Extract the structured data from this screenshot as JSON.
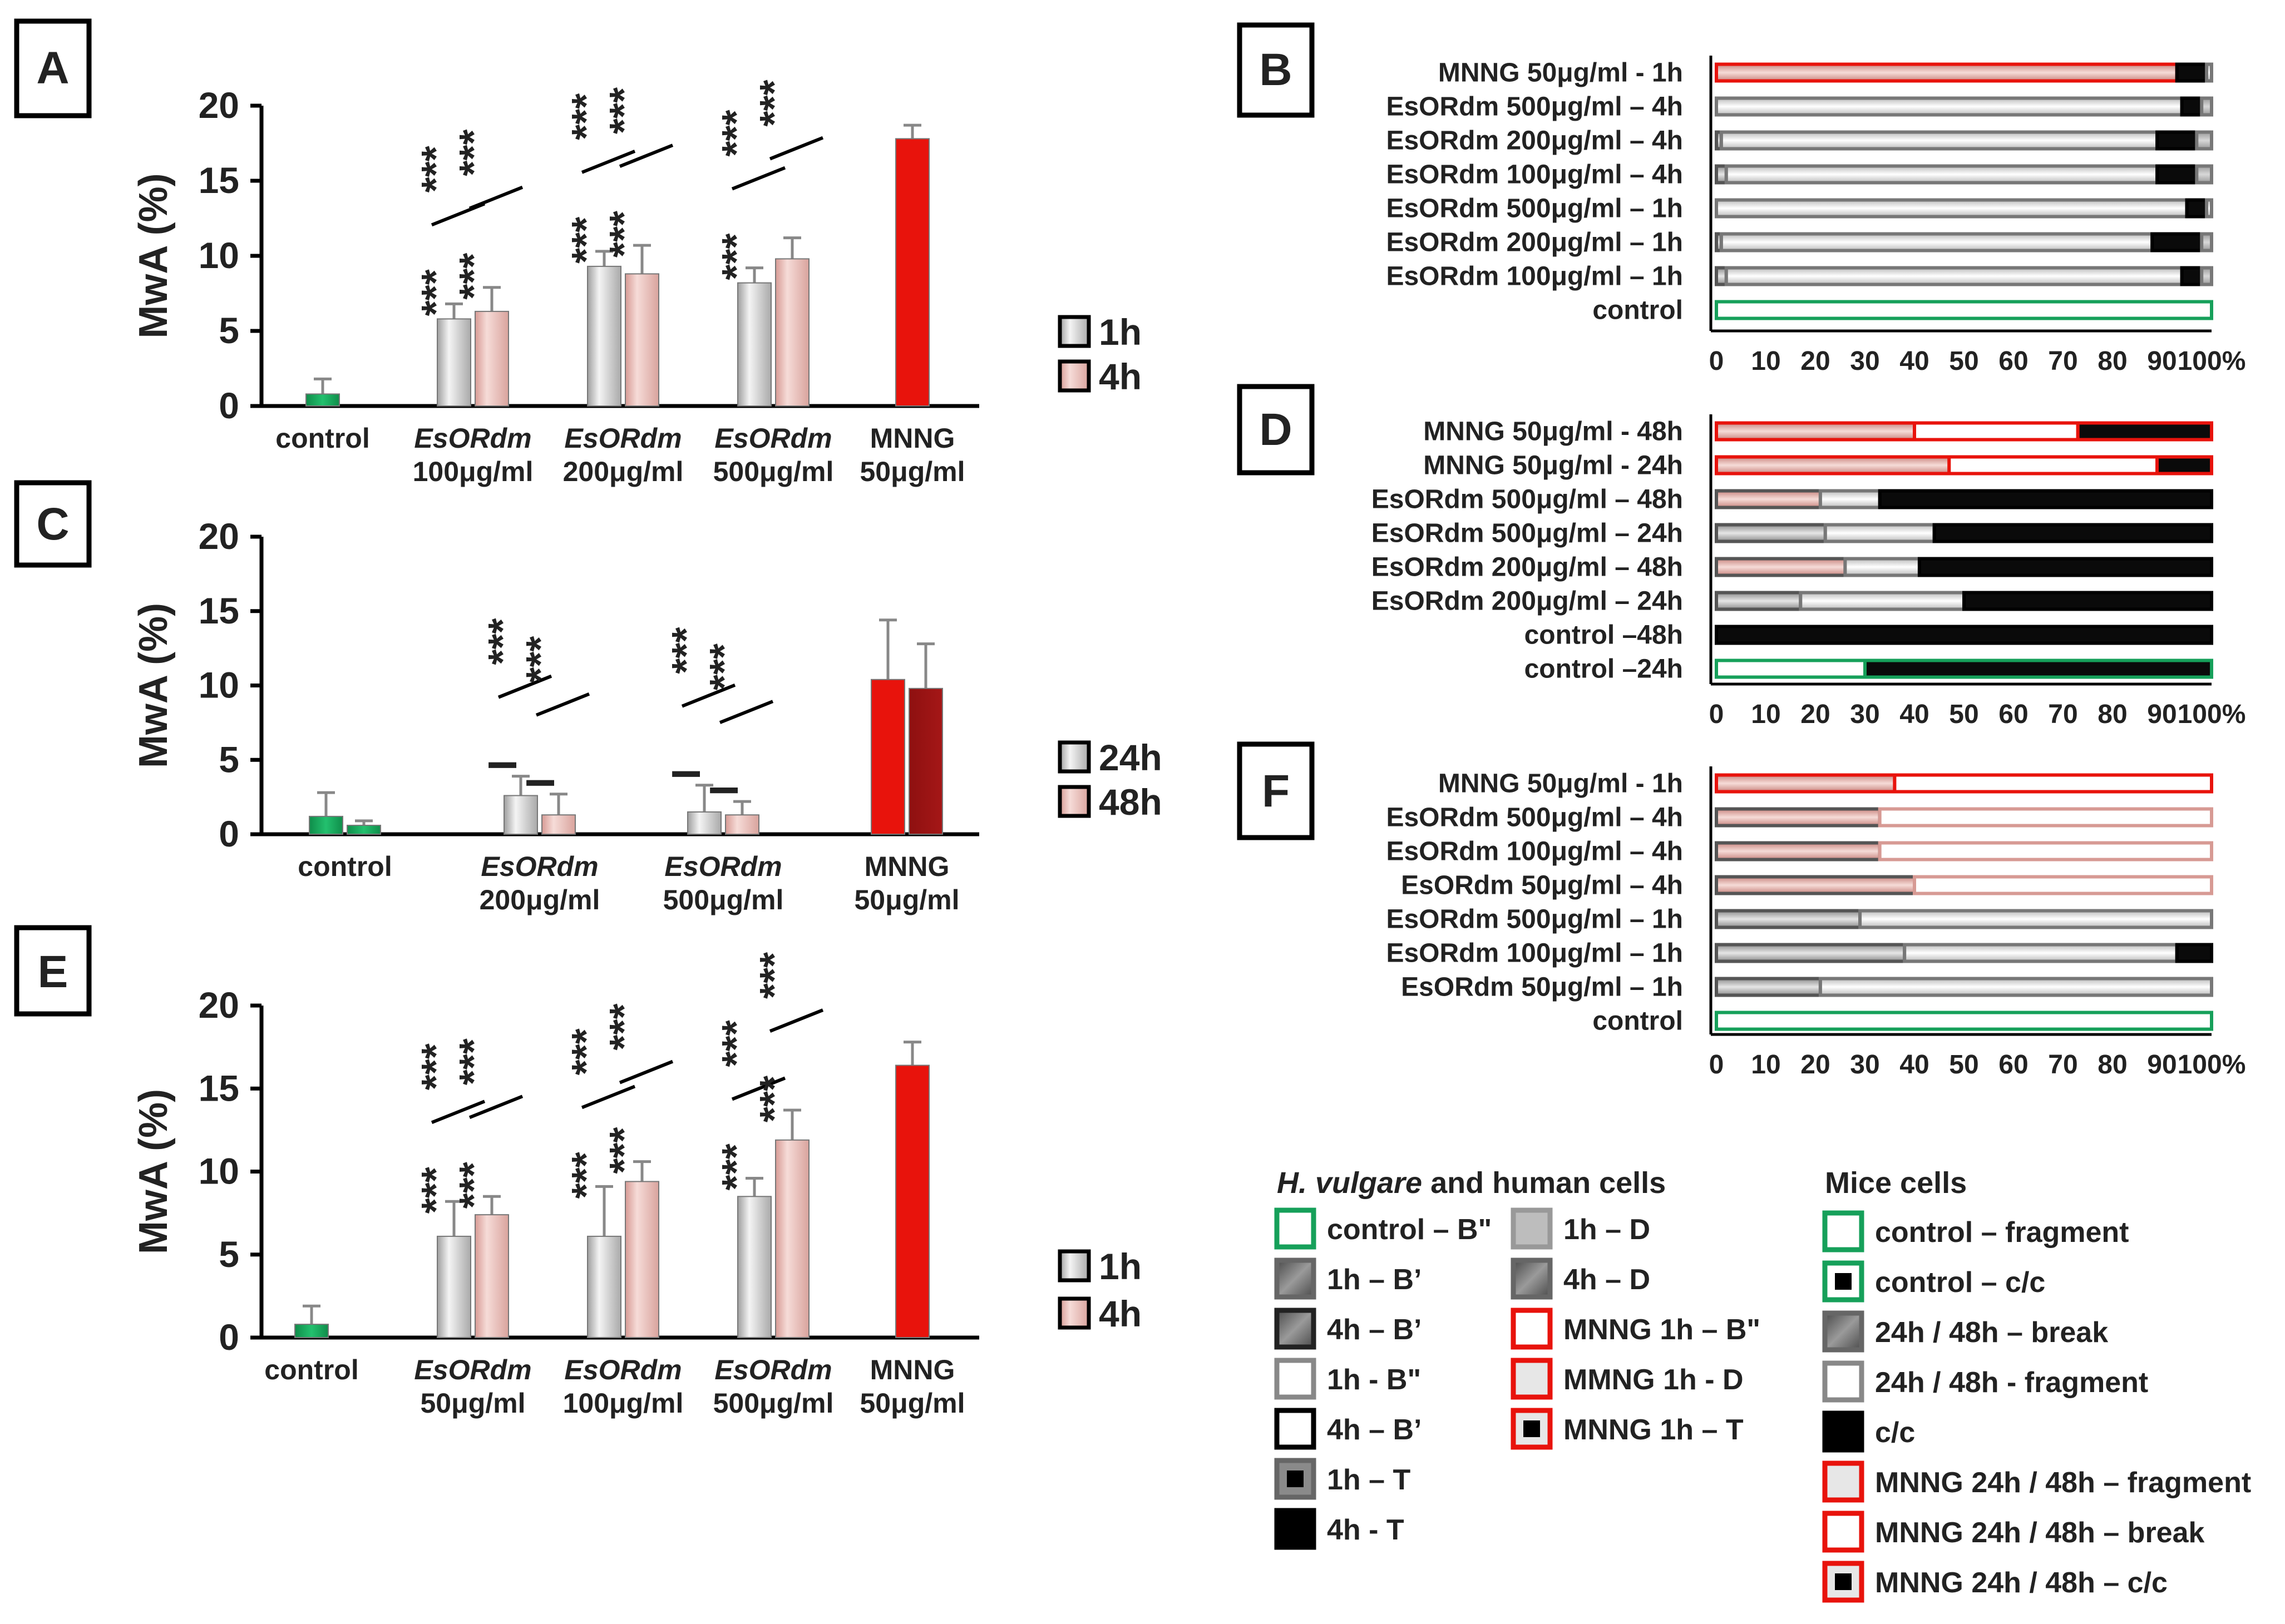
{
  "figure": {
    "panel_labels": [
      "A",
      "B",
      "C",
      "D",
      "E",
      "F"
    ],
    "colors": {
      "control_green": "#16a05a",
      "mnng_red": "#e8130c",
      "mnng_dark": "#8e1010",
      "gray_bar": "#c9c9c9",
      "pink_bar": "#e8b5b0",
      "sig_red": "#ee1c1c",
      "sig_green": "#1bb16d"
    }
  },
  "chart_data": [
    {
      "panel": "A",
      "type": "bar",
      "ylabel": "MwA (%)",
      "ylim": [
        0,
        20
      ],
      "yticks": [
        "0",
        "5",
        "10",
        "15",
        "20"
      ],
      "groups": [
        {
          "label": "control",
          "italic": false,
          "label2": ""
        },
        {
          "label": "EsORdm",
          "italic": true,
          "label2": "100μg/ml"
        },
        {
          "label": "EsORdm",
          "italic": true,
          "label2": "200μg/ml"
        },
        {
          "label": "EsORdm",
          "italic": true,
          "label2": "500μg/ml"
        },
        {
          "label": "MNNG",
          "italic": false,
          "label2": "50μg/ml"
        }
      ],
      "legend": [
        "1h",
        "4h"
      ],
      "bars": [
        {
          "group": 0,
          "series": "1h",
          "value": 0.8,
          "err": 1.0,
          "style": "green"
        },
        {
          "group": 1,
          "series": "1h",
          "value": 5.8,
          "err": 1.0,
          "style": "gray"
        },
        {
          "group": 1,
          "series": "4h",
          "value": 6.3,
          "err": 1.6,
          "style": "pink"
        },
        {
          "group": 2,
          "series": "1h",
          "value": 9.3,
          "err": 1.0,
          "style": "gray"
        },
        {
          "group": 2,
          "series": "4h",
          "value": 8.8,
          "err": 1.9,
          "style": "pink"
        },
        {
          "group": 3,
          "series": "1h",
          "value": 8.2,
          "err": 1.0,
          "style": "gray"
        },
        {
          "group": 3,
          "series": "4h",
          "value": 9.8,
          "err": 1.4,
          "style": "pink"
        },
        {
          "group": 4,
          "series": "1h",
          "value": 17.8,
          "err": 0.9,
          "style": "red"
        }
      ],
      "significance": [
        {
          "bar": 1,
          "red": "***",
          "green": "***"
        },
        {
          "bar": 2,
          "red": "***",
          "green": "***"
        },
        {
          "bar": 3,
          "red": "***",
          "green": "***"
        },
        {
          "bar": 4,
          "red": "***",
          "green": "***"
        },
        {
          "bar": 5,
          "red": "***",
          "green": "***"
        },
        {
          "bar": 6,
          "red": "***",
          "green": ""
        }
      ]
    },
    {
      "panel": "C",
      "type": "bar",
      "ylabel": "MwA (%)",
      "ylim": [
        0,
        20
      ],
      "yticks": [
        "0",
        "5",
        "10",
        "15",
        "20"
      ],
      "groups": [
        {
          "label": "control",
          "italic": false,
          "label2": ""
        },
        {
          "label": "EsORdm",
          "italic": true,
          "label2": "200μg/ml"
        },
        {
          "label": "EsORdm",
          "italic": true,
          "label2": "500μg/ml"
        },
        {
          "label": "MNNG",
          "italic": false,
          "label2": "50μg/ml"
        }
      ],
      "legend": [
        "24h",
        "48h"
      ],
      "bars": [
        {
          "group": 0,
          "series": "24h",
          "value": 1.2,
          "err": 1.6,
          "style": "green"
        },
        {
          "group": 0,
          "series": "48h",
          "value": 0.6,
          "err": 0.3,
          "style": "green"
        },
        {
          "group": 1,
          "series": "24h",
          "value": 2.6,
          "err": 1.3,
          "style": "gray"
        },
        {
          "group": 1,
          "series": "48h",
          "value": 1.3,
          "err": 1.4,
          "style": "pink"
        },
        {
          "group": 2,
          "series": "24h",
          "value": 1.5,
          "err": 1.8,
          "style": "gray"
        },
        {
          "group": 2,
          "series": "48h",
          "value": 1.3,
          "err": 0.9,
          "style": "pink"
        },
        {
          "group": 3,
          "series": "24h",
          "value": 10.4,
          "err": 4.0,
          "style": "red"
        },
        {
          "group": 3,
          "series": "48h",
          "value": 9.8,
          "err": 3.0,
          "style": "darkred"
        }
      ],
      "significance": [
        {
          "bar": 2,
          "red": "***",
          "green": "I"
        },
        {
          "bar": 3,
          "red": "***",
          "green": "I"
        },
        {
          "bar": 4,
          "red": "***",
          "green": "I"
        },
        {
          "bar": 5,
          "red": "***",
          "green": "I"
        }
      ]
    },
    {
      "panel": "E",
      "type": "bar",
      "ylabel": "MwA (%)",
      "ylim": [
        0,
        20
      ],
      "yticks": [
        "0",
        "5",
        "10",
        "15",
        "20"
      ],
      "groups": [
        {
          "label": "control",
          "italic": false,
          "label2": ""
        },
        {
          "label": "EsORdm",
          "italic": true,
          "label2": "50μg/ml"
        },
        {
          "label": "EsORdm",
          "italic": true,
          "label2": "100μg/ml"
        },
        {
          "label": "EsORdm",
          "italic": true,
          "label2": "500μg/ml"
        },
        {
          "label": "MNNG",
          "italic": false,
          "label2": "50μg/ml"
        }
      ],
      "legend": [
        "1h",
        "4h"
      ],
      "bars": [
        {
          "group": 0,
          "series": "1h",
          "value": 0.8,
          "err": 1.1,
          "style": "green"
        },
        {
          "group": 1,
          "series": "1h",
          "value": 6.1,
          "err": 2.1,
          "style": "gray"
        },
        {
          "group": 1,
          "series": "4h",
          "value": 7.4,
          "err": 1.1,
          "style": "pink"
        },
        {
          "group": 2,
          "series": "1h",
          "value": 6.1,
          "err": 3.0,
          "style": "gray"
        },
        {
          "group": 2,
          "series": "4h",
          "value": 9.4,
          "err": 1.2,
          "style": "pink"
        },
        {
          "group": 3,
          "series": "1h",
          "value": 8.5,
          "err": 1.1,
          "style": "gray"
        },
        {
          "group": 3,
          "series": "4h",
          "value": 11.9,
          "err": 1.8,
          "style": "pink"
        },
        {
          "group": 4,
          "series": "1h",
          "value": 16.4,
          "err": 1.4,
          "style": "red"
        }
      ],
      "significance": [
        {
          "bar": 1,
          "red": "***",
          "green": "***"
        },
        {
          "bar": 2,
          "red": "***",
          "green": "***"
        },
        {
          "bar": 3,
          "red": "***",
          "green": "***"
        },
        {
          "bar": 4,
          "red": "***",
          "green": "***"
        },
        {
          "bar": 5,
          "red": "***",
          "green": "***"
        },
        {
          "bar": 6,
          "red": "***",
          "green": "***"
        }
      ]
    },
    {
      "panel": "B",
      "type": "stacked-bar-horizontal",
      "xticks": [
        "0",
        "10",
        "20",
        "30",
        "40",
        "50",
        "60",
        "70",
        "80",
        "90",
        "100%"
      ],
      "rows": [
        {
          "label": "MNNG 50μg/ml - 1h",
          "segments": [
            {
              "style": "redpink",
              "value": 0.93
            },
            {
              "style": "black",
              "value": 0.06
            },
            {
              "style": "white",
              "value": 0.01
            }
          ]
        },
        {
          "label": "EsORdm 500μg/ml – 4h",
          "segments": [
            {
              "style": "white",
              "value": 0.94
            },
            {
              "style": "black",
              "value": 0.04
            },
            {
              "style": "lgray",
              "value": 0.02
            }
          ]
        },
        {
          "label": "EsORdm 200μg/ml – 4h",
          "segments": [
            {
              "style": "dgray",
              "value": 0.01
            },
            {
              "style": "white",
              "value": 0.88
            },
            {
              "style": "black",
              "value": 0.08
            },
            {
              "style": "lgray",
              "value": 0.03
            }
          ]
        },
        {
          "label": "EsORdm 100μg/ml – 4h",
          "segments": [
            {
              "style": "dgray",
              "value": 0.02
            },
            {
              "style": "white",
              "value": 0.87
            },
            {
              "style": "black",
              "value": 0.08
            },
            {
              "style": "lgray",
              "value": 0.03
            }
          ]
        },
        {
          "label": "EsORdm 500μg/ml – 1h",
          "segments": [
            {
              "style": "white",
              "value": 0.95
            },
            {
              "style": "black",
              "value": 0.04
            },
            {
              "style": "white",
              "value": 0.01
            }
          ]
        },
        {
          "label": "EsORdm 200μg/ml – 1h",
          "segments": [
            {
              "style": "dgray",
              "value": 0.01
            },
            {
              "style": "white",
              "value": 0.87
            },
            {
              "style": "black",
              "value": 0.1
            },
            {
              "style": "lgray",
              "value": 0.02
            }
          ]
        },
        {
          "label": "EsORdm 100μg/ml – 1h",
          "segments": [
            {
              "style": "dgray",
              "value": 0.02
            },
            {
              "style": "white",
              "value": 0.92
            },
            {
              "style": "black",
              "value": 0.04
            },
            {
              "style": "lgray",
              "value": 0.02
            }
          ]
        },
        {
          "label": "control",
          "segments": [
            {
              "style": "greenoutline",
              "value": 1.0
            }
          ]
        }
      ]
    },
    {
      "panel": "D",
      "type": "stacked-bar-horizontal",
      "xticks": [
        "0",
        "10",
        "20",
        "30",
        "40",
        "50",
        "60",
        "70",
        "80",
        "90",
        "100%"
      ],
      "rows": [
        {
          "label": "MNNG 50μg/ml - 48h",
          "segments": [
            {
              "style": "redpink",
              "value": 0.4
            },
            {
              "style": "redwhite",
              "value": 0.33
            },
            {
              "style": "redblack",
              "value": 0.27
            }
          ]
        },
        {
          "label": "MNNG 50μg/ml - 24h",
          "segments": [
            {
              "style": "redpink",
              "value": 0.47
            },
            {
              "style": "redwhite",
              "value": 0.42
            },
            {
              "style": "redblack",
              "value": 0.11
            }
          ]
        },
        {
          "label": "EsORdm 500μg/ml – 48h",
          "segments": [
            {
              "style": "pinkgray",
              "value": 0.21
            },
            {
              "style": "white",
              "value": 0.12
            },
            {
              "style": "black",
              "value": 0.67
            }
          ]
        },
        {
          "label": "EsORdm 500μg/ml – 24h",
          "segments": [
            {
              "style": "dgray",
              "value": 0.22
            },
            {
              "style": "white",
              "value": 0.22
            },
            {
              "style": "black",
              "value": 0.56
            }
          ]
        },
        {
          "label": "EsORdm 200μg/ml – 48h",
          "segments": [
            {
              "style": "pinkgray",
              "value": 0.26
            },
            {
              "style": "white",
              "value": 0.15
            },
            {
              "style": "black",
              "value": 0.59
            }
          ]
        },
        {
          "label": "EsORdm 200μg/ml – 24h",
          "segments": [
            {
              "style": "dgray",
              "value": 0.17
            },
            {
              "style": "white",
              "value": 0.33
            },
            {
              "style": "black",
              "value": 0.5
            }
          ]
        },
        {
          "label": "control –48h",
          "segments": [
            {
              "style": "black",
              "value": 1.0
            }
          ]
        },
        {
          "label": "control –24h",
          "segments": [
            {
              "style": "greenwhite",
              "value": 0.3
            },
            {
              "style": "greenblack",
              "value": 0.7
            }
          ]
        }
      ]
    },
    {
      "panel": "F",
      "type": "stacked-bar-horizontal",
      "xticks": [
        "0",
        "10",
        "20",
        "30",
        "40",
        "50",
        "60",
        "70",
        "80",
        "90",
        "100%"
      ],
      "rows": [
        {
          "label": "MNNG 50μg/ml - 1h",
          "segments": [
            {
              "style": "redpink",
              "value": 0.36
            },
            {
              "style": "redwhite",
              "value": 0.64
            }
          ]
        },
        {
          "label": "EsORdm 500μg/ml – 4h",
          "segments": [
            {
              "style": "pinkgray",
              "value": 0.33
            },
            {
              "style": "pinkwhite",
              "value": 0.67
            }
          ]
        },
        {
          "label": "EsORdm 100μg/ml – 4h",
          "segments": [
            {
              "style": "pinkgray",
              "value": 0.33
            },
            {
              "style": "pinkwhite",
              "value": 0.67
            }
          ]
        },
        {
          "label": "EsORdm  50μg/ml  – 4h",
          "segments": [
            {
              "style": "pinkgray",
              "value": 0.4
            },
            {
              "style": "pinkwhite",
              "value": 0.6
            }
          ]
        },
        {
          "label": "EsORdm 500μg/ml – 1h",
          "segments": [
            {
              "style": "dgray",
              "value": 0.29
            },
            {
              "style": "white",
              "value": 0.71
            }
          ]
        },
        {
          "label": "EsORdm 100μg/ml – 1h",
          "segments": [
            {
              "style": "dgray",
              "value": 0.38
            },
            {
              "style": "white",
              "value": 0.55
            },
            {
              "style": "black",
              "value": 0.07
            }
          ]
        },
        {
          "label": "EsORdm  50μg/ml  – 1h",
          "segments": [
            {
              "style": "dgray",
              "value": 0.21
            },
            {
              "style": "white",
              "value": 0.79
            }
          ]
        },
        {
          "label": "control",
          "segments": [
            {
              "style": "greenoutline",
              "value": 1.0
            }
          ]
        }
      ]
    }
  ],
  "legend": {
    "plant_title_italic": "H. vulgare",
    "plant_title_rest": " and human cells",
    "mice_title": "Mice cells",
    "col1": [
      {
        "label": "control – B\"",
        "style": "greenoutline"
      },
      {
        "label": "1h – B’",
        "style": "dgray"
      },
      {
        "label": "4h – B’",
        "style": "dgray2"
      },
      {
        "label": "1h - B\"",
        "style": "white"
      },
      {
        "label": "4h – B’",
        "style": "whiteblack"
      },
      {
        "label": "1h – T",
        "style": "grayblack"
      },
      {
        "label": "4h - T",
        "style": "black"
      }
    ],
    "col2": [
      {
        "label": "1h – D",
        "style": "lgray"
      },
      {
        "label": "4h – D",
        "style": "dgray"
      },
      {
        "label": "MNNG 1h – B\"",
        "style": "redwhite"
      },
      {
        "label": "MMNG 1h - D",
        "style": "redpink"
      },
      {
        "label": "MNNG 1h – T",
        "style": "redblack"
      }
    ],
    "col3": [
      {
        "label": "control – fragment",
        "style": "greenoutline"
      },
      {
        "label": "control – c/c",
        "style": "greenblack"
      },
      {
        "label": "24h / 48h – break",
        "style": "dgray"
      },
      {
        "label": "24h / 48h - fragment",
        "style": "white"
      },
      {
        "label": "c/c",
        "style": "black"
      },
      {
        "label": "MNNG 24h / 48h – fragment",
        "style": "redpink"
      },
      {
        "label": "MNNG 24h / 48h – break",
        "style": "redwhite"
      },
      {
        "label": "MNNG 24h / 48h – c/c",
        "style": "redblack"
      }
    ]
  }
}
